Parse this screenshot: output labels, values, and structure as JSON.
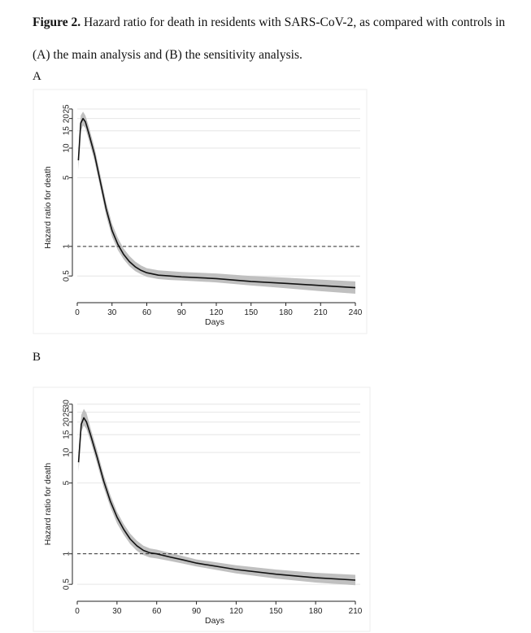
{
  "caption": {
    "label": "Figure 2.",
    "text": " Hazard ratio for death in residents with SARS-CoV-2, as compared with controls in (A) the main analysis and (B) the sensitivity analysis."
  },
  "panels": {
    "a_label": "A",
    "b_label": "B"
  },
  "colors": {
    "line": "#111111",
    "band": "#c0c0c0",
    "grid": "#e6e6e6",
    "reference": "#333333",
    "frame": "#eeeeee"
  },
  "chart_data": [
    {
      "panel": "A",
      "type": "line",
      "title": "",
      "xlabel": "Days",
      "ylabel": "Hazard ratio for death",
      "y_scale": "log",
      "xlim": [
        0,
        240
      ],
      "ylim": [
        0.3,
        28
      ],
      "x_ticks": [
        0,
        30,
        60,
        90,
        120,
        150,
        180,
        210,
        240
      ],
      "y_ticks": [
        0.5,
        1,
        5,
        10,
        15,
        20,
        25
      ],
      "y_tick_labels": [
        "0.5",
        "1",
        "5",
        "10",
        "15",
        "20",
        "25"
      ],
      "reference_line": 1,
      "grid": true,
      "series": [
        {
          "x": [
            1,
            3,
            5,
            7,
            10,
            15,
            20,
            25,
            30,
            35,
            40,
            45,
            50,
            55,
            60,
            70,
            80,
            90,
            120,
            150,
            180,
            210,
            240
          ],
          "y": [
            7.5,
            18,
            20,
            18.5,
            14,
            8.5,
            4.5,
            2.4,
            1.45,
            1.05,
            0.83,
            0.7,
            0.62,
            0.57,
            0.54,
            0.51,
            0.5,
            0.49,
            0.47,
            0.44,
            0.42,
            0.4,
            0.38
          ],
          "lower": [
            6.0,
            15,
            17,
            16,
            12,
            7.3,
            3.9,
            2.05,
            1.25,
            0.92,
            0.74,
            0.63,
            0.56,
            0.52,
            0.49,
            0.465,
            0.455,
            0.45,
            0.43,
            0.4,
            0.375,
            0.35,
            0.33
          ],
          "upper": [
            9.0,
            21.5,
            23.5,
            21.5,
            16.5,
            10,
            5.3,
            2.8,
            1.7,
            1.22,
            0.95,
            0.8,
            0.7,
            0.64,
            0.6,
            0.57,
            0.56,
            0.55,
            0.53,
            0.5,
            0.48,
            0.46,
            0.44
          ]
        }
      ]
    },
    {
      "panel": "B",
      "type": "line",
      "title": "",
      "xlabel": "Days",
      "ylabel": "Hazard ratio for death",
      "y_scale": "log",
      "xlim": [
        0,
        210
      ],
      "ylim": [
        0.38,
        34
      ],
      "x_ticks": [
        0,
        30,
        60,
        90,
        120,
        150,
        180,
        210
      ],
      "y_ticks": [
        0.5,
        1,
        5,
        10,
        15,
        20,
        25,
        30
      ],
      "y_tick_labels": [
        "0.5",
        "1",
        "5",
        "10",
        "15",
        "20",
        "25",
        "30"
      ],
      "reference_line": 1,
      "grid": true,
      "series": [
        {
          "x": [
            1,
            3,
            5,
            7,
            10,
            15,
            20,
            25,
            30,
            35,
            40,
            45,
            50,
            55,
            60,
            70,
            80,
            90,
            120,
            150,
            180,
            210
          ],
          "y": [
            8,
            19,
            22,
            20,
            15,
            9,
            5.2,
            3.3,
            2.3,
            1.75,
            1.4,
            1.2,
            1.08,
            1.02,
            1.0,
            0.93,
            0.87,
            0.81,
            0.7,
            0.63,
            0.58,
            0.55
          ],
          "lower": [
            6.5,
            16,
            18.5,
            17,
            13,
            7.8,
            4.5,
            2.9,
            2.0,
            1.55,
            1.25,
            1.07,
            0.97,
            0.92,
            0.9,
            0.85,
            0.8,
            0.75,
            0.64,
            0.57,
            0.52,
            0.49
          ],
          "upper": [
            10,
            23.5,
            27,
            24.5,
            17.5,
            10.5,
            6.0,
            3.8,
            2.6,
            1.98,
            1.58,
            1.35,
            1.2,
            1.13,
            1.1,
            1.02,
            0.95,
            0.88,
            0.77,
            0.7,
            0.65,
            0.62
          ]
        }
      ]
    }
  ]
}
